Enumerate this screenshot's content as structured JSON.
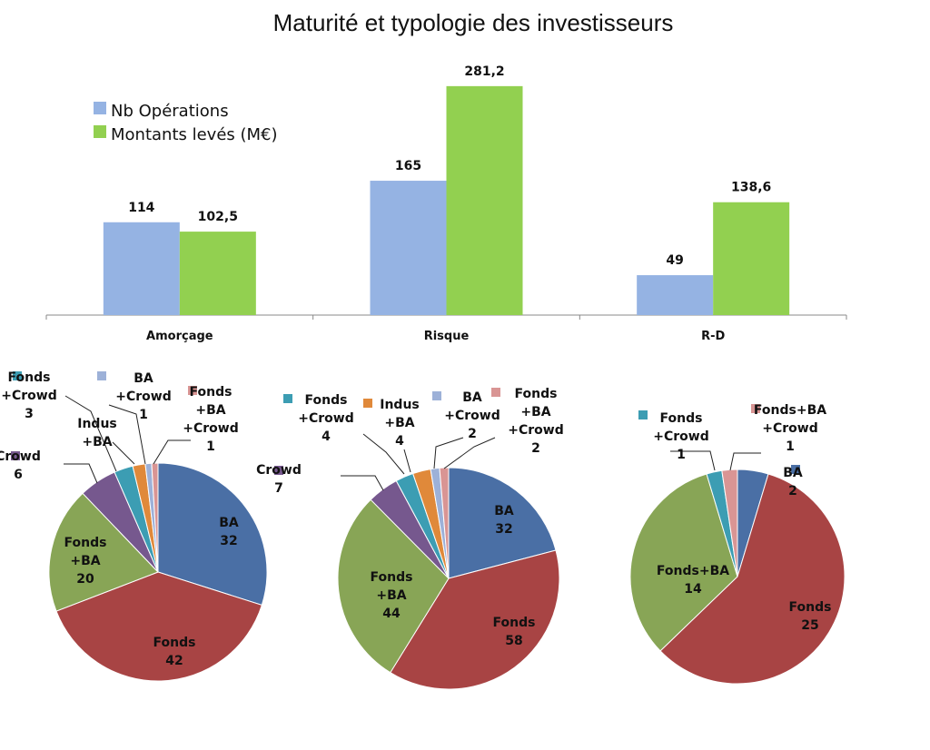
{
  "chart_data": [
    {
      "type": "bar",
      "title": "Maturité et typologie des investisseurs",
      "categories": [
        "Amorçage",
        "Risque",
        "R-D"
      ],
      "series": [
        {
          "name": "Nb Opérations",
          "color": "#95b3e3",
          "values": [
            114,
            165,
            49
          ],
          "labels": [
            "114",
            "165",
            "49"
          ]
        },
        {
          "name": "Montants levés (M€)",
          "color": "#92d050",
          "values": [
            102.5,
            281.2,
            138.6
          ],
          "labels": [
            "102,5",
            "281,2",
            "138,6"
          ]
        }
      ],
      "ylim": [
        0,
        300
      ],
      "grid": false,
      "legend": "top-left"
    },
    {
      "type": "pie",
      "category": "Amorçage",
      "slices": [
        {
          "label": "BA",
          "value": 32,
          "color": "#4a6fa5"
        },
        {
          "label": "Fonds",
          "value": 42,
          "color": "#a84444"
        },
        {
          "label": "Fonds+BA",
          "value": 20,
          "color": "#88a556"
        },
        {
          "label": "Crowd",
          "value": 6,
          "color": "#76588e"
        },
        {
          "label": "Fonds+Crowd",
          "value": 3,
          "color": "#3c9db3"
        },
        {
          "label": "Indus+BA",
          "value": 2,
          "color": "#e0893a"
        },
        {
          "label": "BA+Crowd",
          "value": 1,
          "color": "#9db1d8"
        },
        {
          "label": "Fonds+BA+Crowd",
          "value": 1,
          "color": "#d99594"
        }
      ]
    },
    {
      "type": "pie",
      "category": "Risque",
      "slices": [
        {
          "label": "BA",
          "value": 32,
          "color": "#4a6fa5"
        },
        {
          "label": "Fonds",
          "value": 58,
          "color": "#a84444"
        },
        {
          "label": "Fonds+BA",
          "value": 44,
          "color": "#88a556"
        },
        {
          "label": "Crowd",
          "value": 7,
          "color": "#76588e"
        },
        {
          "label": "Fonds+Crowd",
          "value": 4,
          "color": "#3c9db3"
        },
        {
          "label": "Indus+BA",
          "value": 4,
          "color": "#e0893a"
        },
        {
          "label": "BA+Crowd",
          "value": 2,
          "color": "#9db1d8"
        },
        {
          "label": "Fonds+BA+Crowd",
          "value": 2,
          "color": "#d99594"
        }
      ]
    },
    {
      "type": "pie",
      "category": "R-D",
      "slices": [
        {
          "label": "BA",
          "value": 2,
          "color": "#4a6fa5"
        },
        {
          "label": "Fonds",
          "value": 25,
          "color": "#a84444"
        },
        {
          "label": "Fonds+BA",
          "value": 14,
          "color": "#88a556"
        },
        {
          "label": "Fonds+Crowd",
          "value": 1,
          "color": "#3c9db3"
        },
        {
          "label": "Fonds+BA+Crowd",
          "value": 1,
          "color": "#d99594"
        }
      ]
    }
  ],
  "pie_label_text": [
    [
      {
        "lines": [
          "BA",
          "32"
        ]
      },
      {
        "lines": [
          "Fonds",
          "42"
        ]
      },
      {
        "lines": [
          "Fonds",
          "+BA",
          "20"
        ]
      },
      {
        "lines": [
          "Crowd",
          "6"
        ]
      },
      {
        "lines": [
          "Fonds",
          "+Crowd",
          "3"
        ]
      },
      {
        "lines": [
          "Indus",
          "+BA"
        ]
      },
      {
        "lines": [
          "BA",
          "+Crowd",
          "1"
        ]
      },
      {
        "lines": [
          "Fonds",
          "+BA",
          "+Crowd",
          "1"
        ]
      }
    ],
    [
      {
        "lines": [
          "BA",
          "32"
        ]
      },
      {
        "lines": [
          "Fonds",
          "58"
        ]
      },
      {
        "lines": [
          "Fonds",
          "+BA",
          "44"
        ]
      },
      {
        "lines": [
          "Crowd",
          "7"
        ]
      },
      {
        "lines": [
          "Fonds",
          "+Crowd",
          "4"
        ]
      },
      {
        "lines": [
          "Indus",
          "+BA",
          "4"
        ]
      },
      {
        "lines": [
          "BA",
          "+Crowd",
          "2"
        ]
      },
      {
        "lines": [
          "Fonds",
          "+BA",
          "+Crowd",
          "2"
        ]
      }
    ],
    [
      {
        "lines": [
          "BA",
          "2"
        ]
      },
      {
        "lines": [
          "Fonds",
          "25"
        ]
      },
      {
        "lines": [
          "Fonds+BA",
          "14"
        ]
      },
      {
        "lines": [
          "Fonds",
          "+Crowd",
          "1"
        ]
      },
      {
        "lines": [
          "Fonds+BA",
          "+Crowd",
          "1"
        ]
      }
    ]
  ]
}
